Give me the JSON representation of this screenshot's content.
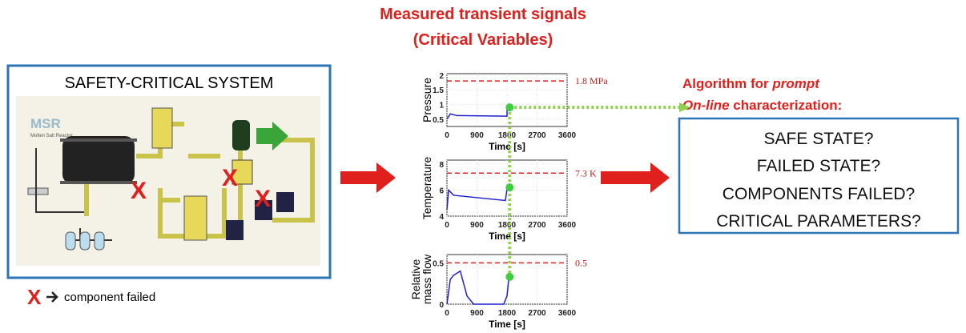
{
  "title_lines": [
    "Measured transient signals",
    "(Critical Variables)"
  ],
  "system": {
    "title": "SAFETY-CRITICAL SYSTEM",
    "logo": "MSR",
    "logo_subtitle": "Molten Salt Reactor",
    "legend": "component failed"
  },
  "algorithm": {
    "line1": [
      "Algorithm for ",
      "prompt"
    ],
    "line2": [
      "On-line",
      " characterization:"
    ]
  },
  "questions": [
    "SAFE STATE?",
    "FAILED STATE?",
    "COMPONENTS FAILED?",
    "CRITICAL PARAMETERS?"
  ],
  "charts": [
    {
      "ylabel": [
        "Pressure"
      ],
      "xlabel": "Time [s]",
      "xlim": [
        0,
        3600
      ],
      "xticks": [
        0,
        900,
        1800,
        2700,
        3600
      ],
      "ylim": [
        0.25,
        2.05
      ],
      "yticks": [
        0.5,
        1,
        1.5,
        2
      ],
      "threshold": 1.8,
      "threshold_label": "1.8 MPa",
      "x": [
        0,
        100,
        300,
        1800,
        1800,
        1850
      ],
      "y": [
        0.5,
        0.68,
        0.62,
        0.6,
        0.9,
        0.9
      ],
      "marker": {
        "x": 1880,
        "y": 0.9
      }
    },
    {
      "ylabel": [
        "Temperature"
      ],
      "xlabel": "Time [s]",
      "xlim": [
        0,
        3600
      ],
      "xticks": [
        0,
        900,
        1800,
        2700,
        3600
      ],
      "ylim": [
        4,
        8.3
      ],
      "yticks": [
        4,
        6,
        8
      ],
      "threshold": 7.3,
      "threshold_label": "7.3 K",
      "x": [
        0,
        50,
        200,
        1750,
        1800,
        1850
      ],
      "y": [
        4.5,
        6,
        5.6,
        5.2,
        6.1,
        6.2
      ],
      "marker": {
        "x": 1880,
        "y": 6.2
      }
    },
    {
      "ylabel": [
        "Relative",
        "mass flow"
      ],
      "xlabel": "Time [s]",
      "xlim": [
        0,
        3600
      ],
      "xticks": [
        0,
        900,
        1800,
        2700,
        3600
      ],
      "ylim": [
        0,
        0.6
      ],
      "yticks": [
        0,
        0.5
      ],
      "threshold": 0.5,
      "threshold_label": "0.5",
      "x": [
        0,
        100,
        200,
        400,
        600,
        800,
        1700,
        1800,
        1850
      ],
      "y": [
        0,
        0.3,
        0.35,
        0.4,
        0.1,
        0,
        0,
        0.1,
        0.3
      ],
      "marker": {
        "x": 1880,
        "y": 0.33
      }
    }
  ]
}
